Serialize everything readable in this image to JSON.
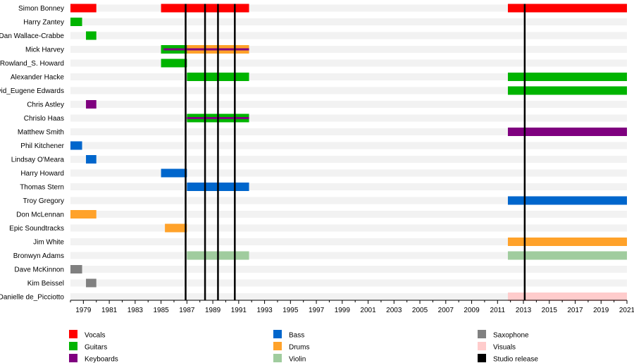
{
  "chart_data": {
    "type": "timeline",
    "title": "",
    "xlim": [
      1978.0,
      2021.0
    ],
    "x_ticks": [
      1979,
      1981,
      1983,
      1985,
      1987,
      1989,
      1991,
      1993,
      1995,
      1997,
      1999,
      2001,
      2003,
      2005,
      2007,
      2009,
      2011,
      2013,
      2015,
      2017,
      2019,
      2021
    ],
    "members": [
      {
        "name": "Simon Bonney",
        "spans": [
          {
            "role": "vocals",
            "start": 1978,
            "end": 1980
          },
          {
            "role": "vocals",
            "start": 1985,
            "end": 1991.8
          },
          {
            "role": "vocals",
            "start": 2011.8,
            "end": 2021
          }
        ]
      },
      {
        "name": "Harry Zantey",
        "spans": [
          {
            "role": "guitars",
            "start": 1978,
            "end": 1978.9
          }
        ]
      },
      {
        "name": "Dan Wallace-Crabbe",
        "spans": [
          {
            "role": "guitars",
            "start": 1979.2,
            "end": 1980
          }
        ]
      },
      {
        "name": "Mick Harvey",
        "spans": [
          {
            "role": "drums",
            "start": 1985,
            "end": 1991.8
          },
          {
            "role": "guitars",
            "start": 1985,
            "end": 1987
          },
          {
            "role": "keyboards",
            "start": 1985.2,
            "end": 1991.8,
            "inner": true
          }
        ]
      },
      {
        "name": "Rowland_S. Howard",
        "spans": [
          {
            "role": "guitars",
            "start": 1985,
            "end": 1987
          }
        ]
      },
      {
        "name": "Alexander Hacke",
        "spans": [
          {
            "role": "guitars",
            "start": 1987,
            "end": 1991.8
          },
          {
            "role": "guitars",
            "start": 2011.8,
            "end": 2021
          }
        ]
      },
      {
        "name": "David_Eugene Edwards",
        "spans": [
          {
            "role": "guitars",
            "start": 2011.8,
            "end": 2021
          }
        ]
      },
      {
        "name": "Chris Astley",
        "spans": [
          {
            "role": "keyboards",
            "start": 1979.2,
            "end": 1980
          }
        ]
      },
      {
        "name": "Chrislo Haas",
        "spans": [
          {
            "role": "guitars",
            "start": 1987,
            "end": 1991.8
          },
          {
            "role": "keyboards",
            "start": 1987,
            "end": 1991.8,
            "inner": true
          }
        ]
      },
      {
        "name": "Matthew Smith",
        "spans": [
          {
            "role": "keyboards",
            "start": 2011.8,
            "end": 2021
          }
        ]
      },
      {
        "name": "Phil Kitchener",
        "spans": [
          {
            "role": "bass",
            "start": 1978,
            "end": 1978.9
          }
        ]
      },
      {
        "name": "Lindsay O'Meara",
        "spans": [
          {
            "role": "bass",
            "start": 1979.2,
            "end": 1980
          }
        ]
      },
      {
        "name": "Harry Howard",
        "spans": [
          {
            "role": "bass",
            "start": 1985,
            "end": 1987
          }
        ]
      },
      {
        "name": "Thomas Stern",
        "spans": [
          {
            "role": "bass",
            "start": 1987,
            "end": 1991.8
          }
        ]
      },
      {
        "name": "Troy Gregory",
        "spans": [
          {
            "role": "bass",
            "start": 2011.8,
            "end": 2021
          }
        ]
      },
      {
        "name": "Don McLennan",
        "spans": [
          {
            "role": "drums",
            "start": 1978,
            "end": 1980
          }
        ]
      },
      {
        "name": "Epic Soundtracks",
        "spans": [
          {
            "role": "drums",
            "start": 1985.3,
            "end": 1987
          }
        ]
      },
      {
        "name": "Jim White",
        "spans": [
          {
            "role": "drums",
            "start": 2011.8,
            "end": 2021
          }
        ]
      },
      {
        "name": "Bronwyn Adams",
        "spans": [
          {
            "role": "violin",
            "start": 1987,
            "end": 1991.8
          },
          {
            "role": "violin",
            "start": 2011.8,
            "end": 2021
          }
        ]
      },
      {
        "name": "Dave McKinnon",
        "spans": [
          {
            "role": "saxophone",
            "start": 1978,
            "end": 1978.9
          }
        ]
      },
      {
        "name": "Kim Beissel",
        "spans": [
          {
            "role": "saxophone",
            "start": 1979.2,
            "end": 1980
          }
        ]
      },
      {
        "name": "Danielle de_Picciotto",
        "spans": [
          {
            "role": "visuals",
            "start": 2011.8,
            "end": 2021
          }
        ]
      }
    ],
    "studio_releases": [
      1986.9,
      1988.4,
      1989.4,
      1990.7,
      2013.1
    ],
    "legend": [
      {
        "key": "vocals",
        "label": "Vocals",
        "color": "#ff0000"
      },
      {
        "key": "guitars",
        "label": "Guitars",
        "color": "#00b400"
      },
      {
        "key": "keyboards",
        "label": "Keyboards",
        "color": "#7f007f"
      },
      {
        "key": "bass",
        "label": "Bass",
        "color": "#0066cc"
      },
      {
        "key": "drums",
        "label": "Drums",
        "color": "#ffa22a"
      },
      {
        "key": "violin",
        "label": "Violin",
        "color": "#a0cc9e"
      },
      {
        "key": "saxophone",
        "label": "Saxophone",
        "color": "#808080"
      },
      {
        "key": "visuals",
        "label": "Visuals",
        "color": "#ffcccc"
      },
      {
        "key": "studio",
        "label": "Studio release",
        "color": "#000000"
      }
    ]
  }
}
